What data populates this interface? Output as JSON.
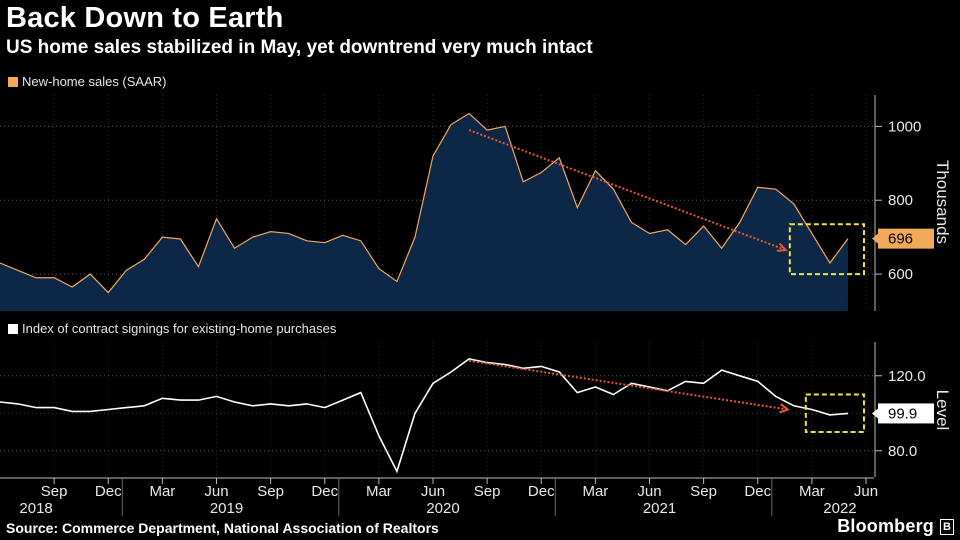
{
  "header": {
    "title": "Back Down to Earth",
    "subtitle": "US home sales stabilized in May, yet downtrend very much intact"
  },
  "footer": {
    "source": "Source: Commerce Department, National Association of Realtors",
    "brand": "Bloomberg"
  },
  "colors": {
    "background": "#000000",
    "top_line": "#f3a95a",
    "top_fill": "#0d2747",
    "bottom_line": "#ffffff",
    "trend_arrow": "#e8582c",
    "highlight_box": "#f0e24a",
    "top_badge": "#f3a95a",
    "bottom_badge": "#ffffff"
  },
  "chart_data": [
    {
      "type": "area",
      "legend": "New-home sales (SAAR)",
      "ylabel": "Thousands",
      "yticks": [
        600,
        800,
        1000
      ],
      "ylim": [
        500,
        1085
      ],
      "last_value_label": "696",
      "annotations": [
        "downward trend arrow",
        "highlight box around latest months"
      ],
      "series": [
        {
          "name": "New-home sales (SAAR)",
          "x": [
            "2018-06",
            "2018-07",
            "2018-08",
            "2018-09",
            "2018-10",
            "2018-11",
            "2018-12",
            "2019-01",
            "2019-02",
            "2019-03",
            "2019-04",
            "2019-05",
            "2019-06",
            "2019-07",
            "2019-08",
            "2019-09",
            "2019-10",
            "2019-11",
            "2019-12",
            "2020-01",
            "2020-02",
            "2020-03",
            "2020-04",
            "2020-05",
            "2020-06",
            "2020-07",
            "2020-08",
            "2020-09",
            "2020-10",
            "2020-11",
            "2020-12",
            "2021-01",
            "2021-02",
            "2021-03",
            "2021-04",
            "2021-05",
            "2021-06",
            "2021-07",
            "2021-08",
            "2021-09",
            "2021-10",
            "2021-11",
            "2021-12",
            "2022-01",
            "2022-02",
            "2022-03",
            "2022-04",
            "2022-05"
          ],
          "values": [
            630,
            610,
            590,
            590,
            565,
            600,
            550,
            610,
            640,
            700,
            695,
            620,
            750,
            670,
            700,
            715,
            710,
            690,
            685,
            705,
            690,
            615,
            580,
            700,
            920,
            1005,
            1035,
            990,
            1000,
            850,
            875,
            915,
            780,
            880,
            830,
            740,
            710,
            720,
            680,
            730,
            670,
            740,
            835,
            830,
            790,
            710,
            630,
            696
          ]
        }
      ]
    },
    {
      "type": "line",
      "legend": "Index of contract signings for existing-home purchases",
      "ylabel": "Level",
      "yticks": [
        80.0,
        120.0
      ],
      "ylim": [
        66,
        138
      ],
      "last_value_label": "99.9",
      "annotations": [
        "downward trend arrow",
        "highlight box around latest months"
      ],
      "x_ticks_months": [
        "Sep",
        "Dec",
        "Mar",
        "Jun",
        "Sep",
        "Dec",
        "Mar",
        "Jun",
        "Sep",
        "Dec",
        "Mar",
        "Jun",
        "Sep",
        "Dec",
        "Mar",
        "Jun"
      ],
      "x_ticks_years": [
        "2018",
        "2019",
        "2020",
        "2021",
        "2022"
      ],
      "series": [
        {
          "name": "Index of contract signings for existing-home purchases",
          "x": [
            "2018-06",
            "2018-07",
            "2018-08",
            "2018-09",
            "2018-10",
            "2018-11",
            "2018-12",
            "2019-01",
            "2019-02",
            "2019-03",
            "2019-04",
            "2019-05",
            "2019-06",
            "2019-07",
            "2019-08",
            "2019-09",
            "2019-10",
            "2019-11",
            "2019-12",
            "2020-01",
            "2020-02",
            "2020-03",
            "2020-04",
            "2020-05",
            "2020-06",
            "2020-07",
            "2020-08",
            "2020-09",
            "2020-10",
            "2020-11",
            "2020-12",
            "2021-01",
            "2021-02",
            "2021-03",
            "2021-04",
            "2021-05",
            "2021-06",
            "2021-07",
            "2021-08",
            "2021-09",
            "2021-10",
            "2021-11",
            "2021-12",
            "2022-01",
            "2022-02",
            "2022-03",
            "2022-04",
            "2022-05"
          ],
          "values": [
            106,
            105,
            103,
            103,
            101,
            101,
            102,
            103,
            104,
            108,
            107,
            107,
            109,
            106,
            104,
            105,
            104,
            105,
            103,
            107,
            111,
            88,
            69,
            100,
            116,
            122,
            129,
            127,
            126,
            124,
            125,
            122,
            111,
            114,
            110,
            116,
            114,
            112,
            117,
            116,
            123,
            120,
            117,
            109,
            104,
            102,
            99.1,
            99.9
          ]
        }
      ]
    }
  ]
}
